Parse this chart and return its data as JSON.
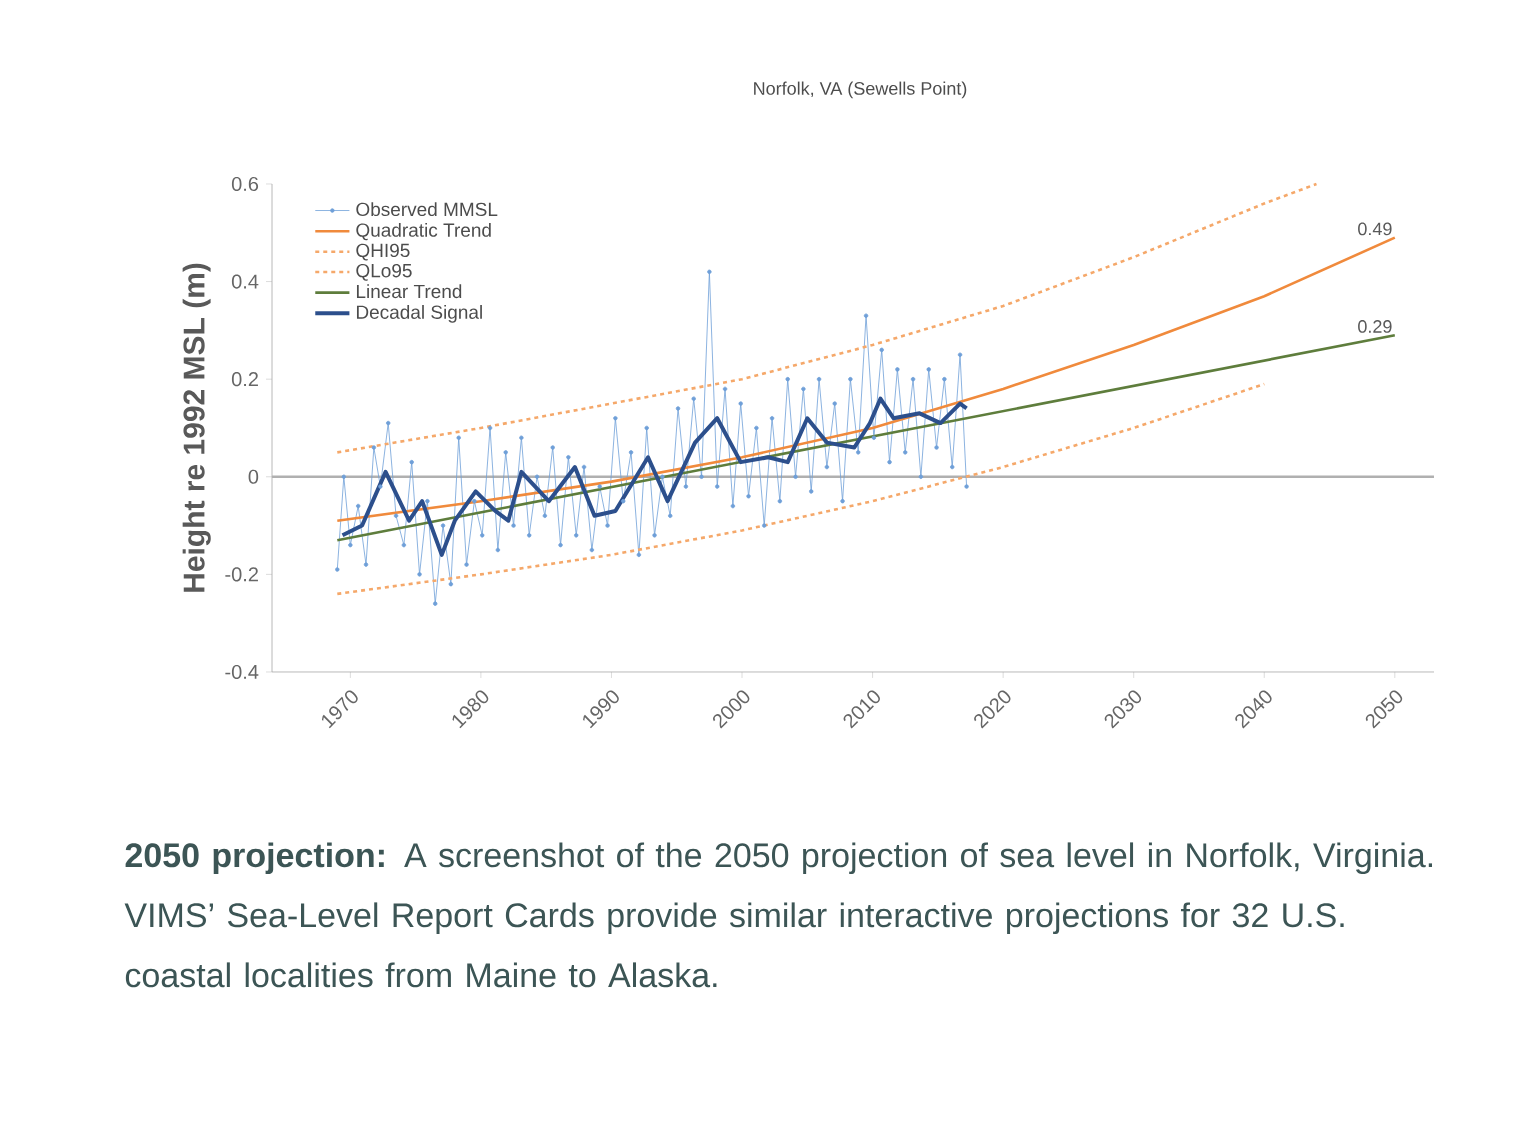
{
  "chart_data": {
    "type": "line",
    "title": "Norfolk, VA (Sewells Point)",
    "ylabel": "Height re 1992 MSL (m)",
    "xlim": [
      1964,
      2053
    ],
    "ylim": [
      -0.4,
      0.6
    ],
    "xticks": [
      1970,
      1980,
      1990,
      2000,
      2010,
      2020,
      2030,
      2040,
      2050
    ],
    "yticks": [
      -0.4,
      -0.2,
      0,
      0.2,
      0.4,
      0.6
    ],
    "legend": "top left",
    "ref_lines": [
      {
        "axis": "y",
        "value": 0,
        "color": "#b0b0b0"
      }
    ],
    "series": [
      {
        "name": "Observed MMSL",
        "color": "#6f9fd8",
        "marker": "circle",
        "x": [
          1969.0,
          1969.5,
          1970.0,
          1970.6,
          1971.2,
          1971.8,
          1972.3,
          1972.9,
          1973.5,
          1974.1,
          1974.7,
          1975.3,
          1975.9,
          1976.5,
          1977.1,
          1977.7,
          1978.3,
          1978.9,
          1979.5,
          1980.1,
          1980.7,
          1981.3,
          1981.9,
          1982.5,
          1983.1,
          1983.7,
          1984.3,
          1984.9,
          1985.5,
          1986.1,
          1986.7,
          1987.3,
          1987.9,
          1988.5,
          1989.1,
          1989.7,
          1990.3,
          1990.9,
          1991.5,
          1992.1,
          1992.7,
          1993.3,
          1993.9,
          1994.5,
          1995.1,
          1995.7,
          1996.3,
          1996.9,
          1997.5,
          1998.1,
          1998.7,
          1999.3,
          1999.9,
          2000.5,
          2001.1,
          2001.7,
          2002.3,
          2002.9,
          2003.5,
          2004.1,
          2004.7,
          2005.3,
          2005.9,
          2006.5,
          2007.1,
          2007.7,
          2008.3,
          2008.9,
          2009.5,
          2010.1,
          2010.7,
          2011.3,
          2011.9,
          2012.5,
          2013.1,
          2013.7,
          2014.3,
          2014.9,
          2015.5,
          2016.1,
          2016.7,
          2017.2
        ],
        "values": [
          -0.19,
          0.0,
          -0.14,
          -0.06,
          -0.18,
          0.06,
          -0.02,
          0.11,
          -0.08,
          -0.14,
          0.03,
          -0.2,
          -0.05,
          -0.26,
          -0.1,
          -0.22,
          0.08,
          -0.18,
          -0.05,
          -0.12,
          0.1,
          -0.15,
          0.05,
          -0.1,
          0.08,
          -0.12,
          0.0,
          -0.08,
          0.06,
          -0.14,
          0.04,
          -0.12,
          0.02,
          -0.15,
          -0.02,
          -0.1,
          0.12,
          -0.05,
          0.05,
          -0.16,
          0.1,
          -0.12,
          0.0,
          -0.08,
          0.14,
          -0.02,
          0.16,
          0.0,
          0.42,
          -0.02,
          0.18,
          -0.06,
          0.15,
          -0.04,
          0.1,
          -0.1,
          0.12,
          -0.05,
          0.2,
          0.0,
          0.18,
          -0.03,
          0.2,
          0.02,
          0.15,
          -0.05,
          0.2,
          0.05,
          0.33,
          0.08,
          0.26,
          0.03,
          0.22,
          0.05,
          0.2,
          0.0,
          0.22,
          0.06,
          0.2,
          0.02,
          0.25,
          -0.02
        ]
      },
      {
        "name": "Quadratic Trend",
        "color": "#f08a3c",
        "x": [
          1969,
          1980,
          1990,
          2000,
          2010,
          2020,
          2030,
          2040,
          2050
        ],
        "values": [
          -0.09,
          -0.05,
          -0.01,
          0.04,
          0.1,
          0.18,
          0.27,
          0.37,
          0.49
        ]
      },
      {
        "name": "QHI95",
        "color": "#f5a86a",
        "line_style": "dotted",
        "x": [
          1969,
          1980,
          1990,
          2000,
          2010,
          2020,
          2030,
          2040,
          2044
        ],
        "values": [
          0.05,
          0.1,
          0.15,
          0.2,
          0.27,
          0.35,
          0.45,
          0.56,
          0.6
        ]
      },
      {
        "name": "QLo95",
        "color": "#f5a86a",
        "line_style": "dotted",
        "x": [
          1969,
          1980,
          1990,
          2000,
          2010,
          2020,
          2030,
          2040
        ],
        "values": [
          -0.24,
          -0.2,
          -0.16,
          -0.11,
          -0.05,
          0.02,
          0.1,
          0.19
        ]
      },
      {
        "name": "Linear Trend",
        "color": "#5e7d3c",
        "x": [
          1969,
          2050
        ],
        "values": [
          -0.13,
          0.29
        ]
      },
      {
        "name": "Decadal Signal",
        "color": "#2c4f8c",
        "x": [
          1969.4,
          1970.9,
          1972.7,
          1974.5,
          1975.5,
          1977.0,
          1978.0,
          1979.6,
          1981.1,
          1982.1,
          1983.1,
          1985.2,
          1987.2,
          1988.7,
          1990.3,
          1992.8,
          1994.3,
          1996.4,
          1998.1,
          1999.9,
          2002.0,
          2003.5,
          2005.0,
          2006.5,
          2008.6,
          2009.8,
          2010.6,
          2011.6,
          2013.6,
          2015.2,
          2016.7,
          2017.2
        ],
        "values": [
          -0.12,
          -0.1,
          0.01,
          -0.09,
          -0.05,
          -0.16,
          -0.09,
          -0.03,
          -0.07,
          -0.09,
          0.01,
          -0.05,
          0.02,
          -0.08,
          -0.07,
          0.04,
          -0.05,
          0.07,
          0.12,
          0.03,
          0.04,
          0.03,
          0.12,
          0.07,
          0.06,
          0.11,
          0.16,
          0.12,
          0.13,
          0.11,
          0.15,
          0.14
        ]
      }
    ],
    "annotations": [
      {
        "text": "0.49",
        "x": 2050,
        "y": 0.49
      },
      {
        "text": "0.29",
        "x": 2050,
        "y": 0.29
      },
      "**2050 projection:**  A screenshot of the 2050 projection of sea level in Norfolk, Virginia. VIMS’ Sea-Level Report Cards provide similar interactive projections for 32 U.S. coastal localities from Maine to Alaska."
    ]
  }
}
